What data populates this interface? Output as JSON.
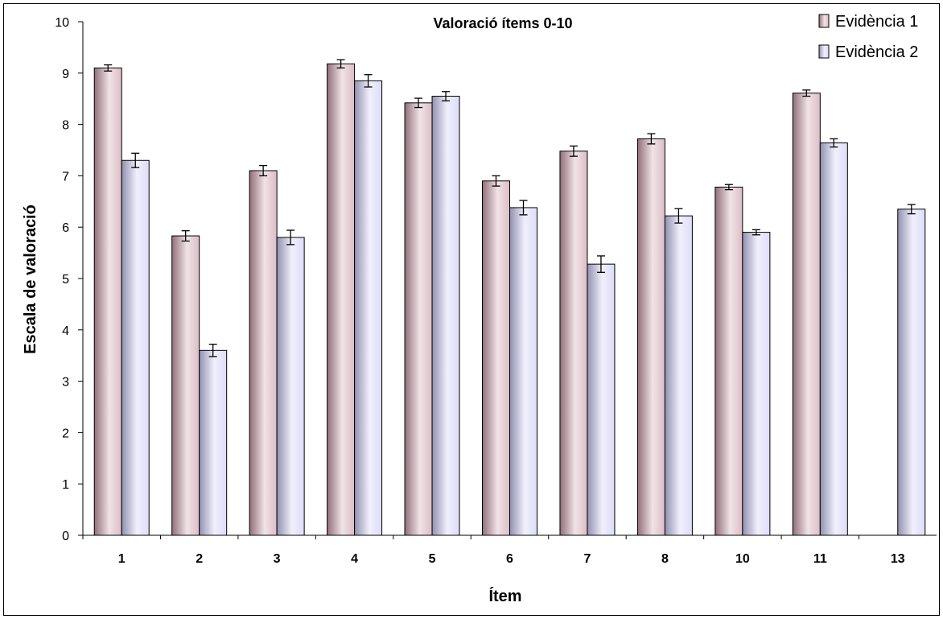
{
  "chart_data": {
    "type": "bar",
    "title": "Valoració ítems 0-10",
    "xlabel": "Ítem",
    "ylabel": "Escala de valoració",
    "ylim": [
      0,
      10
    ],
    "yticks": [
      0,
      1,
      2,
      3,
      4,
      5,
      6,
      7,
      8,
      9,
      10
    ],
    "categories": [
      "1",
      "2",
      "3",
      "4",
      "5",
      "6",
      "7",
      "8",
      "10",
      "11",
      "13"
    ],
    "grid": false,
    "legend_position": "top-right",
    "series": [
      {
        "name": "Evidència 1",
        "color": "#c99aa6",
        "values": [
          9.1,
          5.83,
          7.1,
          9.18,
          8.42,
          6.9,
          7.48,
          7.72,
          6.78,
          8.61,
          null
        ],
        "errors": [
          0.06,
          0.1,
          0.1,
          0.08,
          0.09,
          0.1,
          0.1,
          0.1,
          0.05,
          0.06,
          null
        ]
      },
      {
        "name": "Evidència 2",
        "color": "#c9c9f5",
        "values": [
          7.3,
          3.6,
          5.8,
          8.85,
          8.55,
          6.38,
          5.28,
          6.22,
          5.9,
          7.64,
          6.35
        ],
        "errors": [
          0.14,
          0.12,
          0.14,
          0.12,
          0.09,
          0.14,
          0.16,
          0.14,
          0.05,
          0.08,
          0.09
        ]
      }
    ]
  }
}
